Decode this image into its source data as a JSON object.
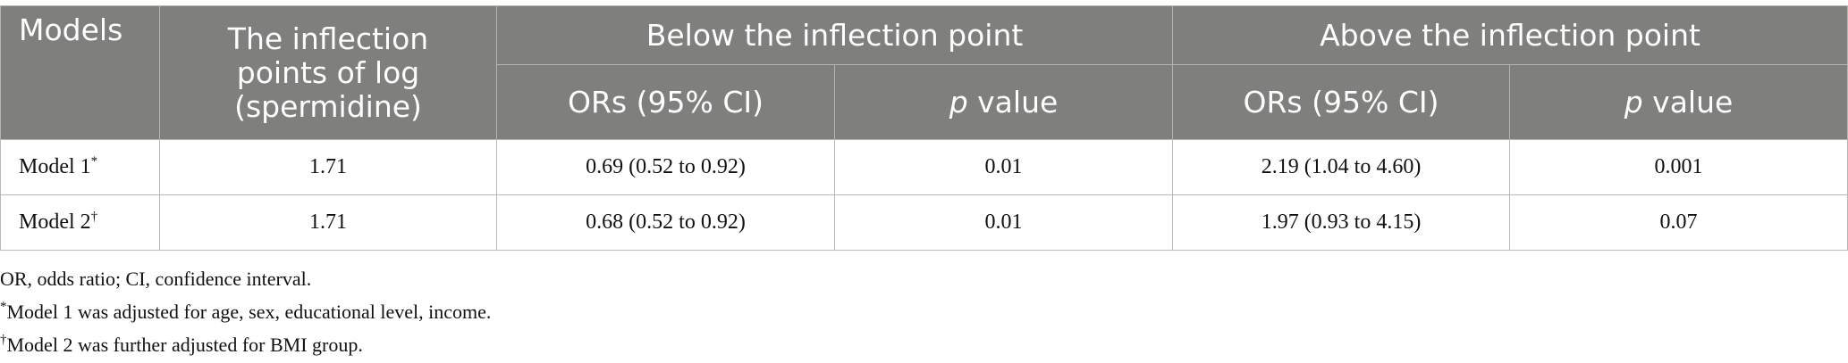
{
  "table": {
    "header": {
      "models": "Models",
      "inflection": "The inflection points of log (spermidine)",
      "below": "Below the inflection point",
      "above": "Above the inflection point",
      "below_or": "ORs (95% CI)",
      "below_p": {
        "italic": "p",
        "text": "value"
      },
      "above_or": "ORs (95% CI)",
      "above_p": {
        "italic": "p",
        "text": "value"
      }
    },
    "rows": [
      {
        "model": "Model 1",
        "marker": "*",
        "cells": [
          "1.71",
          "0.69 (0.52 to 0.92)",
          "0.01",
          "2.19 (1.04 to 4.60)",
          "0.001"
        ]
      },
      {
        "model": "Model 2",
        "marker": "†",
        "cells": [
          "1.71",
          "0.68 (0.52 to 0.92)",
          "0.01",
          "1.97 (0.93 to 4.15)",
          "0.07"
        ]
      }
    ]
  },
  "footnotes": [
    {
      "text": "OR, odds ratio; CI, confidence interval."
    },
    {
      "marker": "*",
      "text": "Model 1 was adjusted for age, sex, educational level, income."
    },
    {
      "marker": "†",
      "text": "Model 2 was further adjusted for BMI group."
    }
  ]
}
